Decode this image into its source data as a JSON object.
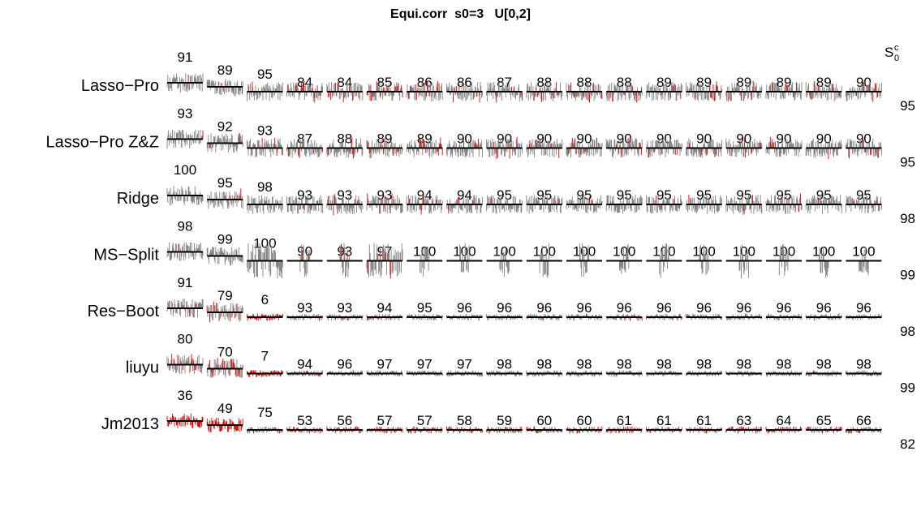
{
  "title": "Equi.corr  s0=3   U[0,2]",
  "right_header": {
    "base": "S",
    "sup": "c",
    "sub": "0"
  },
  "chart_data": {
    "type": "line",
    "title": "Equi.corr  s0=3   U[0,2]",
    "rows": [
      {
        "method": "Lasso−Pro",
        "values": [
          91,
          89,
          95,
          84,
          84,
          85,
          86,
          86,
          87,
          88,
          88,
          88,
          89,
          89,
          89,
          89,
          89,
          90
        ],
        "right_value": 95
      },
      {
        "method": "Lasso−Pro Z&Z",
        "values": [
          93,
          92,
          93,
          87,
          88,
          89,
          89,
          90,
          90,
          90,
          90,
          90,
          90,
          90,
          90,
          90,
          90,
          90
        ],
        "right_value": 95
      },
      {
        "method": "Ridge",
        "values": [
          100,
          95,
          98,
          93,
          93,
          93,
          94,
          94,
          95,
          95,
          95,
          95,
          95,
          95,
          95,
          95,
          95,
          95
        ],
        "right_value": 98
      },
      {
        "method": "MS−Split",
        "values": [
          98,
          99,
          100,
          90,
          93,
          97,
          100,
          100,
          100,
          100,
          100,
          100,
          100,
          100,
          100,
          100,
          100,
          100
        ],
        "right_value": 99
      },
      {
        "method": "Res−Boot",
        "values": [
          91,
          79,
          6,
          93,
          93,
          94,
          95,
          96,
          96,
          96,
          96,
          96,
          96,
          96,
          96,
          96,
          96,
          96
        ],
        "right_value": 98
      },
      {
        "method": "liuyu",
        "values": [
          80,
          70,
          7,
          94,
          96,
          97,
          97,
          97,
          98,
          98,
          98,
          98,
          98,
          98,
          98,
          98,
          98,
          98
        ],
        "right_value": 99
      },
      {
        "method": "Jm2013",
        "values": [
          36,
          49,
          75,
          53,
          56,
          57,
          57,
          58,
          59,
          60,
          60,
          61,
          61,
          61,
          63,
          64,
          65,
          66
        ],
        "right_value": 82
      }
    ],
    "colors": {
      "non_covered": "#e00000",
      "covered": "#808080",
      "target_line": "#000000"
    },
    "legend": "none",
    "grid": false
  }
}
